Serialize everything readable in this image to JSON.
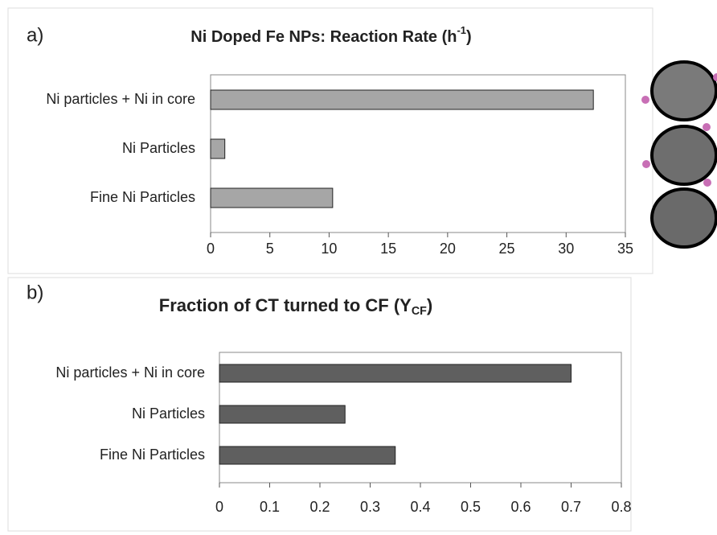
{
  "chart_data": [
    {
      "type": "bar",
      "orientation": "horizontal",
      "panel_label": "a)",
      "title": [
        "Ni Doped Fe NPs:  Reaction Rate (h",
        "-1",
        ")"
      ],
      "categories": [
        "Ni particles + Ni in core",
        "Ni Particles",
        "Fine Ni Particles"
      ],
      "values": [
        32.3,
        1.2,
        10.3
      ],
      "color": "#a6a6a6",
      "xlim": [
        0,
        35
      ],
      "xticks": [
        0,
        5,
        10,
        15,
        20,
        25,
        30,
        35
      ]
    },
    {
      "type": "bar",
      "orientation": "horizontal",
      "panel_label": "b)",
      "title": [
        "Fraction of CT turned to CF (Y",
        "CF",
        ")"
      ],
      "categories": [
        "Ni particles + Ni in core",
        "Ni Particles",
        "Fine Ni Particles"
      ],
      "values": [
        0.7,
        0.25,
        0.35
      ],
      "color": "#5f5f5f",
      "xlim": [
        0,
        0.8
      ],
      "xticks": [
        0,
        0.1,
        0.2,
        0.3,
        0.4,
        0.5,
        0.6,
        0.7,
        0.8
      ]
    }
  ]
}
